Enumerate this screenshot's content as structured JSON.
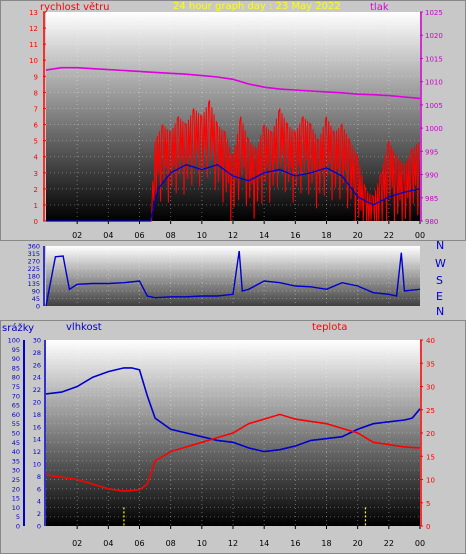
{
  "header": {
    "title": "24 hour graph day : 23 May 2022",
    "wind_label": "rychlost větru",
    "pressure_label": "tlak"
  },
  "direction_labels": [
    "N",
    "W",
    "S",
    "E",
    "N"
  ],
  "bottom": {
    "rain_label": "srážky",
    "humidity_label": "vlhkost",
    "temp_label": "teplota"
  },
  "colors": {
    "wind": "#ff0000",
    "wind_avg": "#0000cc",
    "pressure": "#dd00dd",
    "direction": "#0000cc",
    "humidity": "#0000cc",
    "temperature": "#ff0000",
    "rain": "#ffff00",
    "left_axis_blue": "#0000cc",
    "right_axis_magenta": "#cc00cc",
    "right_axis_red": "#ff0000"
  },
  "chart_data": [
    {
      "type": "line",
      "title": "24 hour graph day : 23 May 2022",
      "x_ticks": [
        "02",
        "04",
        "06",
        "08",
        "10",
        "12",
        "14",
        "16",
        "18",
        "20",
        "22",
        "00"
      ],
      "xlim": [
        0,
        24
      ],
      "left_axis": {
        "label": "rychlost větru",
        "ylim": [
          0,
          13
        ],
        "ticks": [
          0,
          1,
          2,
          3,
          4,
          5,
          6,
          7,
          8,
          9,
          10,
          11,
          12,
          13
        ]
      },
      "right_axis": {
        "label": "tlak",
        "ylim": [
          980,
          1025
        ],
        "ticks": [
          980,
          985,
          990,
          995,
          1000,
          1005,
          1010,
          1015,
          1020,
          1025
        ]
      },
      "series": [
        {
          "name": "tlak",
          "axis": "right",
          "x": [
            0,
            1,
            2,
            3,
            4,
            5,
            6,
            7,
            8,
            9,
            10,
            11,
            12,
            13,
            14,
            15,
            16,
            17,
            18,
            19,
            20,
            21,
            22,
            23,
            24
          ],
          "y": [
            1012.5,
            1013.0,
            1013.0,
            1012.8,
            1012.6,
            1012.4,
            1012.2,
            1012.0,
            1011.8,
            1011.6,
            1011.3,
            1011.0,
            1010.5,
            1009.5,
            1008.8,
            1008.4,
            1008.2,
            1008.0,
            1007.8,
            1007.6,
            1007.3,
            1007.2,
            1007.0,
            1006.7,
            1006.4
          ]
        },
        {
          "name": "wind gust",
          "axis": "left",
          "x": [
            0,
            6.7,
            7.0,
            7.5,
            8,
            8.5,
            9,
            9.5,
            10,
            10.5,
            11,
            11.5,
            12,
            12.5,
            13,
            13.5,
            14,
            14.5,
            15,
            15.5,
            16,
            16.5,
            17,
            17.5,
            18,
            18.5,
            19,
            19.5,
            20,
            20.5,
            21,
            21.5,
            22,
            22.5,
            23,
            23.5,
            24
          ],
          "y": [
            0,
            0,
            5,
            6,
            5.5,
            6.5,
            6,
            7,
            6.5,
            7.5,
            6,
            5.5,
            4,
            6.5,
            5,
            4.5,
            6,
            5.5,
            7,
            6,
            5.5,
            6.5,
            6,
            5,
            6.5,
            5.5,
            6,
            5,
            4,
            2,
            1.5,
            3,
            5,
            4,
            3.5,
            4.5,
            5
          ]
        },
        {
          "name": "wind avg",
          "axis": "left",
          "x": [
            0,
            6.7,
            7.2,
            8,
            9,
            10,
            11,
            12,
            13,
            14,
            15,
            16,
            17,
            18,
            19,
            20,
            21,
            22,
            23,
            24
          ],
          "y": [
            0,
            0,
            2,
            3,
            3.5,
            3.2,
            3.5,
            2.8,
            2.5,
            3,
            3.2,
            2.8,
            3,
            3.3,
            2.8,
            1.5,
            1,
            1.5,
            1.8,
            2
          ]
        }
      ]
    },
    {
      "type": "line",
      "title": "",
      "x_ticks": [],
      "xlim": [
        0,
        24
      ],
      "left_axis": {
        "label": "",
        "ylim": [
          0,
          360
        ],
        "ticks": [
          0,
          45,
          90,
          135,
          180,
          225,
          270,
          315,
          360
        ]
      },
      "right_labels": [
        "N",
        "W",
        "S",
        "E",
        "N"
      ],
      "series": [
        {
          "name": "wind direction",
          "x": [
            0,
            0.6,
            1.1,
            1.5,
            2,
            3,
            4,
            5,
            6,
            6.5,
            7,
            8,
            9,
            10,
            11,
            12,
            12.4,
            12.6,
            13,
            14,
            15,
            16,
            17,
            18,
            19,
            20,
            21,
            22,
            22.5,
            22.8,
            23,
            24
          ],
          "y": [
            0,
            295,
            300,
            100,
            130,
            135,
            135,
            140,
            150,
            60,
            50,
            55,
            55,
            60,
            60,
            70,
            330,
            90,
            100,
            150,
            140,
            120,
            115,
            100,
            140,
            120,
            80,
            70,
            60,
            320,
            90,
            100
          ]
        }
      ]
    },
    {
      "type": "line",
      "title": "",
      "x_ticks": [
        "02",
        "04",
        "06",
        "08",
        "10",
        "12",
        "14",
        "16",
        "18",
        "20",
        "22",
        "00"
      ],
      "xlim": [
        0,
        24
      ],
      "axes": [
        {
          "label": "srážky",
          "ylim": [
            0,
            100
          ],
          "ticks": [
            0,
            5,
            10,
            15,
            20,
            25,
            30,
            35,
            40,
            45,
            50,
            55,
            60,
            65,
            70,
            75,
            80,
            85,
            90,
            95,
            100
          ]
        },
        {
          "label": "vlhkost",
          "ylim": [
            0,
            30
          ],
          "ticks": [
            0,
            2,
            4,
            6,
            8,
            10,
            12,
            14,
            16,
            18,
            20,
            22,
            24,
            26,
            28,
            30
          ]
        },
        {
          "label": "teplota",
          "ylim": [
            0,
            40
          ],
          "ticks": [
            0,
            5,
            10,
            15,
            20,
            25,
            30,
            35,
            40
          ]
        }
      ],
      "series": [
        {
          "name": "vlhkost",
          "axis": "srážky",
          "x": [
            0,
            1,
            2,
            3,
            4,
            5,
            5.5,
            6,
            6.5,
            7,
            8,
            9,
            10,
            11,
            12,
            13,
            14,
            15,
            16,
            17,
            18,
            19,
            20,
            21,
            22,
            23,
            23.5,
            24
          ],
          "y": [
            71,
            72,
            75,
            80,
            83,
            85,
            85,
            84,
            70,
            58,
            52,
            50,
            48,
            46,
            45,
            42,
            40,
            41,
            43,
            46,
            47,
            48,
            52,
            55,
            56,
            57,
            58,
            63
          ]
        },
        {
          "name": "teplota",
          "axis": "teplota",
          "x": [
            0,
            1,
            2,
            3,
            4,
            5,
            6,
            6.5,
            7,
            8,
            9,
            10,
            11,
            12,
            13,
            14,
            15,
            16,
            17,
            18,
            19,
            20,
            21,
            22,
            23,
            24
          ],
          "y": [
            11,
            10.5,
            10,
            9,
            8,
            7.5,
            7.8,
            9,
            14,
            16,
            17,
            18,
            19,
            20,
            22,
            23,
            24,
            23,
            22.5,
            22,
            21,
            20,
            18,
            17.5,
            17,
            16.8
          ]
        },
        {
          "name": "srážky",
          "axis": "srážky",
          "x": [
            5,
            20.5
          ],
          "y": [
            10,
            10
          ]
        }
      ]
    }
  ]
}
